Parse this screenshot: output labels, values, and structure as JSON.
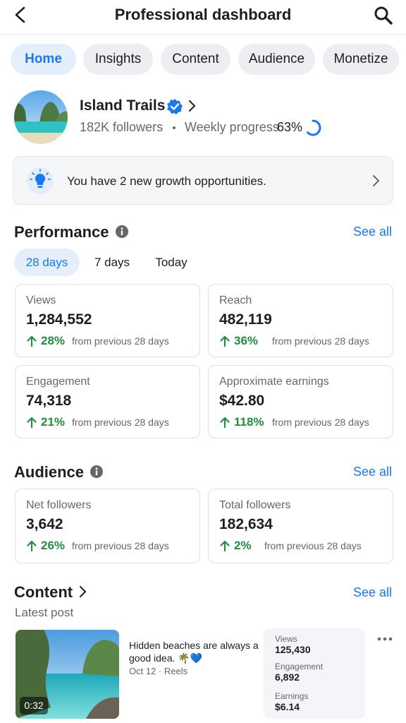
{
  "header": {
    "title": "Professional dashboard"
  },
  "tabs": [
    "Home",
    "Insights",
    "Content",
    "Audience",
    "Monetize"
  ],
  "profile": {
    "name": "Island Trails",
    "followers": "182K followers",
    "progress_label": "Weekly progress",
    "progress": {
      "value": 63,
      "label": "63%"
    }
  },
  "banner": {
    "text": "You have 2 new growth opportunities."
  },
  "performance": {
    "title": "Performance",
    "see_all": "See all",
    "ranges": [
      "28 days",
      "7 days",
      "Today"
    ],
    "cards": [
      {
        "label": "Views",
        "value": "1,284,552",
        "change": "28%",
        "note": "from previous 28 days"
      },
      {
        "label": "Reach",
        "value": "482,119",
        "change": "36%",
        "note": "from previous 28 days"
      },
      {
        "label": "Engagement",
        "value": "74,318",
        "change": "21%",
        "note": "from previous 28 days"
      },
      {
        "label": "Approximate earnings",
        "value": "$42.80",
        "change": "118%",
        "note": "from previous 28 days"
      }
    ]
  },
  "audience": {
    "title": "Audience",
    "see_all": "See all",
    "cards": [
      {
        "label": "Net followers",
        "value": "3,642",
        "change": "26%",
        "note": "from previous 28 days"
      },
      {
        "label": "Total followers",
        "value": "182,634",
        "change": "2%",
        "note": "from previous 28 days"
      }
    ]
  },
  "content": {
    "title": "Content",
    "see_all": "See all",
    "subtitle": "Latest post",
    "post": {
      "caption": "Hidden beaches are always a good idea. 🌴💙",
      "meta": "Oct 12 · Reels",
      "duration": "0:32",
      "stats": [
        {
          "label": "Views",
          "value": "125,430"
        },
        {
          "label": "Engagement",
          "value": "6,892"
        },
        {
          "label": "Earnings",
          "value": "$6.14"
        }
      ]
    }
  }
}
